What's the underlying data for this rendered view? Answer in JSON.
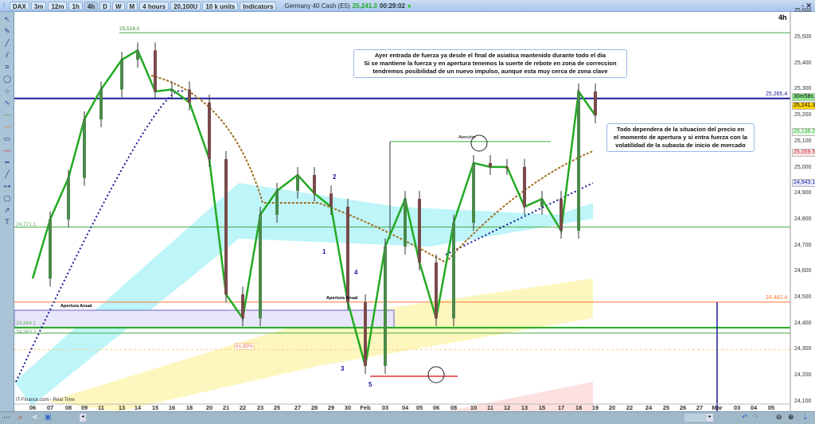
{
  "toolbar": {
    "symbol": "DAX",
    "timeframes": [
      "3m",
      "12m",
      "1h",
      "4h",
      "D",
      "W",
      "M"
    ],
    "selected_timeframe": "4h",
    "period": "4 hours",
    "bars": "20,100U",
    "units": "10 k units",
    "indicators": "Indicators",
    "instrument": "Germany 40 Cash (E5)",
    "last_price": "25,241.3",
    "clock": "00:29:02",
    "window_controls": "_ ▫ ✕"
  },
  "chart_header": "4h",
  "source": "IT-Finance.com - Real Time",
  "colors": {
    "up": "#22aa22",
    "down": "#cc2222",
    "resistance": "#1a1a99",
    "support": "#33aa33",
    "annual_open": "#ff7733"
  },
  "notes": {
    "top": [
      "Ayer entrada de fuerza ya desde el final de asiatica mantenido durante todo el dia",
      "Si se mantiene la fuerza y en apertura tenemos la suerte de rebote en zona de correccion",
      "tendremos posibilidad de un nuevo impulso, aunque esta muy cerca de zona clave"
    ],
    "right": [
      "Todo dependera de la situacion del precio en",
      "el momento de apertura y si entra fuerza con la",
      "volatilidad de la subasta de inicio de mercado"
    ]
  },
  "annotations": {
    "high_label": "25,518.0",
    "atencion": "Atención",
    "apertura_anual": "Apertura Anual",
    "apertura_anual_2": "Apertura Anual",
    "fib": "61.80%",
    "waves": [
      "1",
      "2",
      "3",
      "4",
      "5"
    ],
    "left_labels": [
      "24,771.1",
      "24,384.1",
      "24,363.2"
    ]
  },
  "chart_data": {
    "type": "candlestick",
    "title": "",
    "x_ticks": [
      "06",
      "07",
      "08",
      "09",
      "11",
      "13",
      "14",
      "15",
      "16",
      "18",
      "20",
      "21",
      "22",
      "23",
      "25",
      "27",
      "28",
      "29",
      "30",
      "Feb",
      "03",
      "04",
      "05",
      "06",
      "08",
      "10",
      "11",
      "12",
      "13",
      "15",
      "17",
      "18",
      "19",
      "20",
      "22",
      "24",
      "25",
      "26",
      "27",
      "Mar",
      "03",
      "04",
      "05"
    ],
    "y_ticks": [
      "25,600",
      "25,500",
      "25,400",
      "25,300",
      "25,200",
      "25,100",
      "25,000",
      "24,900",
      "24,800",
      "24,700",
      "24,600",
      "24,500",
      "24,400",
      "24,300",
      "24,200",
      "24,100"
    ],
    "ylim": [
      24080,
      25620
    ],
    "approx_close": [
      [
        "06",
        24573
      ],
      [
        "07",
        24800
      ],
      [
        "08",
        24960
      ],
      [
        "09",
        25185
      ],
      [
        "11",
        25300
      ],
      [
        "13",
        25414
      ],
      [
        "14",
        25450
      ],
      [
        "15",
        25292
      ],
      [
        "16",
        25300
      ],
      [
        "18",
        25250
      ],
      [
        "20",
        25032
      ],
      [
        "21",
        24512
      ],
      [
        "22",
        24420
      ],
      [
        "23",
        24818
      ],
      [
        "25",
        24910
      ],
      [
        "27",
        24971
      ],
      [
        "28",
        24900
      ],
      [
        "29",
        24849
      ],
      [
        "30",
        24482
      ],
      [
        "Feb",
        24237
      ],
      [
        "03",
        24696
      ],
      [
        "04",
        24879
      ],
      [
        "05",
        24635
      ],
      [
        "06",
        24420
      ],
      [
        "08",
        24787
      ],
      [
        "10",
        25017
      ],
      [
        "11",
        25002
      ],
      [
        "12",
        25002
      ],
      [
        "13",
        24849
      ],
      [
        "15",
        24879
      ],
      [
        "17",
        24757
      ],
      [
        "18",
        25292
      ],
      [
        "19",
        25200
      ]
    ],
    "horizontal_levels": [
      {
        "value": 25518.0,
        "color": "#44aa44"
      },
      {
        "value": 25265.4,
        "label": "25,265.4",
        "color": "#1a1a99"
      },
      {
        "value": 24771.1,
        "color": "#44aa44"
      },
      {
        "value": 24482.4,
        "label": "24,482.4",
        "color": "#ff7733"
      },
      {
        "value": 24384.1,
        "color": "#22aa22"
      },
      {
        "value": 24363.2,
        "color": "#44aa44"
      },
      {
        "value": 24300,
        "color": "#ffcc88"
      }
    ],
    "price_tags": [
      {
        "label": "25,241.3",
        "value": 25241.3,
        "bg": "#ffd400",
        "fg": "#000"
      },
      {
        "label": "30m58s",
        "value": 25215,
        "bg": "#8ee88e",
        "fg": "#000"
      },
      {
        "label": "25,136.2",
        "value": 25136.2,
        "bg": "#e8f8e8",
        "fg": "#22bb22"
      },
      {
        "label": "25,059.5",
        "value": 25059.5,
        "bg": "#fbe8e8",
        "fg": "#cc2222"
      },
      {
        "label": "24,943.1",
        "value": 24943.1,
        "bg": "#e8e8f8",
        "fg": "#2222aa"
      }
    ]
  }
}
